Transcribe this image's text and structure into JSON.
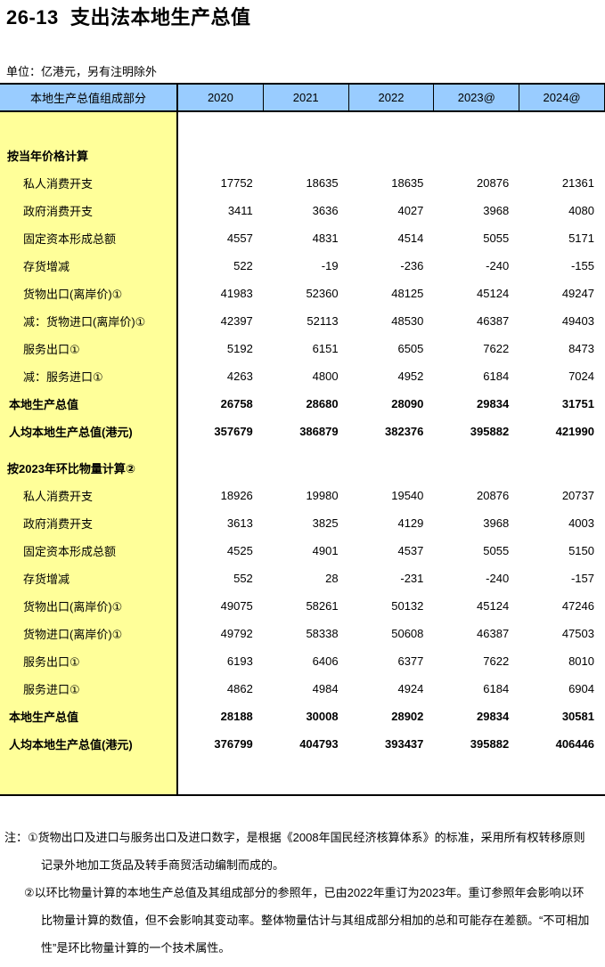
{
  "title": "26-13  支出法本地生产总值",
  "unit_label": "单位：亿港元，另有注明除外",
  "colors": {
    "header_bg": "#99CCFF",
    "stub_bg": "#FFFF99",
    "border": "#000000"
  },
  "table": {
    "stub_header": "本地生产总值组成部分",
    "year_columns": [
      "2020",
      "2021",
      "2022",
      "2023@",
      "2024@"
    ],
    "sections": [
      {
        "heading": "按当年价格计算",
        "rows": [
          {
            "label": "私人消费开支",
            "style": "item",
            "values": [
              "17752",
              "18635",
              "18635",
              "20876",
              "21361"
            ]
          },
          {
            "label": "政府消费开支",
            "style": "item",
            "values": [
              "3411",
              "3636",
              "4027",
              "3968",
              "4080"
            ]
          },
          {
            "label": "固定资本形成总额",
            "style": "item",
            "values": [
              "4557",
              "4831",
              "4514",
              "5055",
              "5171"
            ]
          },
          {
            "label": "存货增减",
            "style": "item",
            "values": [
              "522",
              "-19",
              "-236",
              "-240",
              "-155"
            ]
          },
          {
            "label": "货物出口(离岸价)①",
            "style": "item",
            "values": [
              "41983",
              "52360",
              "48125",
              "45124",
              "49247"
            ]
          },
          {
            "label": "减：货物进口(离岸价)①",
            "style": "item",
            "values": [
              "42397",
              "52113",
              "48530",
              "46387",
              "49403"
            ]
          },
          {
            "label": "服务出口①",
            "style": "item",
            "values": [
              "5192",
              "6151",
              "6505",
              "7622",
              "8473"
            ]
          },
          {
            "label": "减：服务进口①",
            "style": "item",
            "values": [
              "4263",
              "4800",
              "4952",
              "6184",
              "7024"
            ]
          },
          {
            "label": "本地生产总值",
            "style": "total",
            "values": [
              "26758",
              "28680",
              "28090",
              "29834",
              "31751"
            ]
          },
          {
            "label": "人均本地生产总值(港元)",
            "style": "total",
            "values": [
              "357679",
              "386879",
              "382376",
              "395882",
              "421990"
            ]
          }
        ]
      },
      {
        "heading": "按2023年环比物量计算②",
        "rows": [
          {
            "label": "私人消费开支",
            "style": "item",
            "values": [
              "18926",
              "19980",
              "19540",
              "20876",
              "20737"
            ]
          },
          {
            "label": "政府消费开支",
            "style": "item",
            "values": [
              "3613",
              "3825",
              "4129",
              "3968",
              "4003"
            ]
          },
          {
            "label": "固定资本形成总额",
            "style": "item",
            "values": [
              "4525",
              "4901",
              "4537",
              "5055",
              "5150"
            ]
          },
          {
            "label": "存货增减",
            "style": "item",
            "values": [
              "552",
              "28",
              "-231",
              "-240",
              "-157"
            ]
          },
          {
            "label": "货物出口(离岸价)①",
            "style": "item",
            "values": [
              "49075",
              "58261",
              "50132",
              "45124",
              "47246"
            ]
          },
          {
            "label": "货物进口(离岸价)①",
            "style": "item",
            "values": [
              "49792",
              "58338",
              "50608",
              "46387",
              "47503"
            ]
          },
          {
            "label": "服务出口①",
            "style": "item",
            "values": [
              "6193",
              "6406",
              "6377",
              "7622",
              "8010"
            ]
          },
          {
            "label": "服务进口①",
            "style": "item",
            "values": [
              "4862",
              "4984",
              "4924",
              "6184",
              "6904"
            ]
          },
          {
            "label": "本地生产总值",
            "style": "total",
            "values": [
              "28188",
              "30008",
              "28902",
              "29834",
              "30581"
            ]
          },
          {
            "label": "人均本地生产总值(港元)",
            "style": "total",
            "values": [
              "376799",
              "404793",
              "393437",
              "395882",
              "406446"
            ]
          }
        ]
      }
    ]
  },
  "notes": {
    "lines": [
      {
        "text": "注：①货物出口及进口与服务出口及进口数字，是根据《2008年国民经济核算体系》的标准，采用所有权转移原则",
        "indent": 0
      },
      {
        "text": "记录外地加工货品及转手商贸活动编制而成的。",
        "indent": 2
      },
      {
        "text": "②以环比物量计算的本地生产总值及其组成部分的参照年，已由2022年重订为2023年。重订参照年会影响以环",
        "indent": 1
      },
      {
        "text": "比物量计算的数值，但不会影响其变动率。整体物量估计与其组成部分相加的总和可能存在差额。“不可相加",
        "indent": 2
      },
      {
        "text": "性”是环比物量计算的一个技术属性。",
        "indent": 2
      }
    ]
  }
}
